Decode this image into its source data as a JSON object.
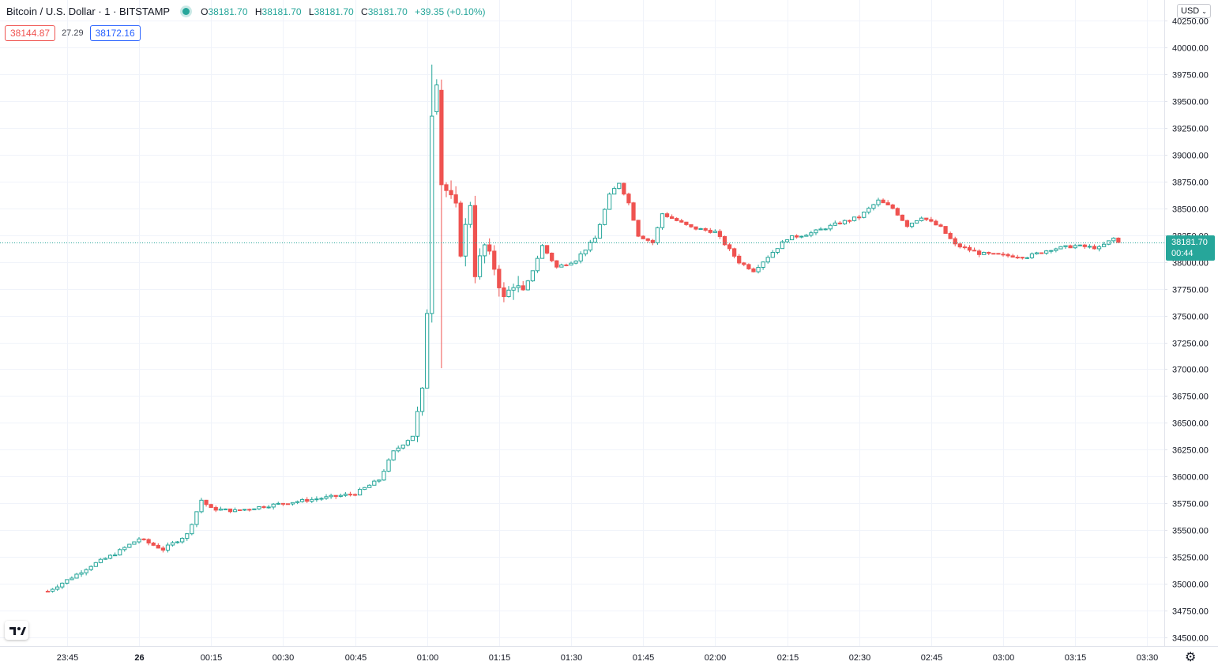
{
  "legend": {
    "symbol": "Bitcoin / U.S. Dollar · 1 · BITSTAMP",
    "open": "38181.70",
    "high": "38181.70",
    "low": "38181.70",
    "close": "38181.70",
    "change": "+39.35 (+0.10%)",
    "labels": {
      "o": "O",
      "h": "H",
      "l": "L",
      "c": "C"
    }
  },
  "spread": {
    "bid": "38144.87",
    "diff": "27.29",
    "ask": "38172.16"
  },
  "currency": "USD",
  "last_price": {
    "price": "38181.70",
    "countdown": "00:44"
  },
  "colors": {
    "up": "#26a69a",
    "down": "#ef5350",
    "grid": "#f0f3fa",
    "axis": "#e0e3eb"
  },
  "icons": {
    "logo": "tradingview-logo-icon",
    "settings": "gear-icon",
    "dropdown": "chevron-down-icon",
    "live": "live-dot-icon"
  },
  "chart_data": {
    "type": "candlestick",
    "timeframe": "1 minute",
    "ylim": [
      34400,
      40300
    ],
    "y_ticks": [
      "34500.00",
      "34750.00",
      "35000.00",
      "35250.00",
      "35500.00",
      "35750.00",
      "36000.00",
      "36250.00",
      "36500.00",
      "36750.00",
      "37000.00",
      "37250.00",
      "37500.00",
      "37750.00",
      "38000.00",
      "38250.00",
      "38500.00",
      "38750.00",
      "39000.00",
      "39250.00",
      "39500.00",
      "39750.00",
      "40000.00",
      "40250.00"
    ],
    "x_ticks": [
      "23:45",
      "26",
      "00:15",
      "00:30",
      "00:45",
      "01:00",
      "01:15",
      "01:30",
      "01:45",
      "02:00",
      "02:15",
      "02:30",
      "02:45",
      "03:00",
      "03:15",
      "03:30"
    ],
    "x_tick_bold": [
      "26"
    ],
    "x_range_minutes": [
      -19,
      220
    ],
    "key_points": [
      {
        "minute": -19,
        "price": 34930
      },
      {
        "minute": -14,
        "price": 35060
      },
      {
        "minute": -10,
        "price": 35170
      },
      {
        "minute": -5,
        "price": 35280
      },
      {
        "minute": 0,
        "price": 35420
      },
      {
        "minute": 5,
        "price": 35320
      },
      {
        "minute": 10,
        "price": 35460
      },
      {
        "minute": 13,
        "price": 35780
      },
      {
        "minute": 15,
        "price": 35700
      },
      {
        "minute": 20,
        "price": 35680
      },
      {
        "minute": 30,
        "price": 35750
      },
      {
        "minute": 40,
        "price": 35810
      },
      {
        "minute": 45,
        "price": 35840
      },
      {
        "minute": 50,
        "price": 35970
      },
      {
        "minute": 53,
        "price": 36230
      },
      {
        "minute": 57,
        "price": 36380
      },
      {
        "minute": 59,
        "price": 36780
      },
      {
        "minute": 60,
        "price": 37550
      },
      {
        "minute": 61,
        "price": 39400
      },
      {
        "minute": 62,
        "price": 39650
      },
      {
        "minute": 63,
        "price": 38750
      },
      {
        "minute": 66,
        "price": 38500
      },
      {
        "minute": 67,
        "price": 38100
      },
      {
        "minute": 69,
        "price": 38550
      },
      {
        "minute": 70,
        "price": 37900
      },
      {
        "minute": 72,
        "price": 38150
      },
      {
        "minute": 74,
        "price": 37950
      },
      {
        "minute": 76,
        "price": 37650
      },
      {
        "minute": 78,
        "price": 37800
      },
      {
        "minute": 80,
        "price": 37700
      },
      {
        "minute": 84,
        "price": 38150
      },
      {
        "minute": 87,
        "price": 37950
      },
      {
        "minute": 91,
        "price": 38020
      },
      {
        "minute": 95,
        "price": 38220
      },
      {
        "minute": 98,
        "price": 38620
      },
      {
        "minute": 100,
        "price": 38740
      },
      {
        "minute": 102,
        "price": 38550
      },
      {
        "minute": 104,
        "price": 38250
      },
      {
        "minute": 107,
        "price": 38180
      },
      {
        "minute": 109,
        "price": 38450
      },
      {
        "minute": 115,
        "price": 38320
      },
      {
        "minute": 120,
        "price": 38280
      },
      {
        "minute": 125,
        "price": 38000
      },
      {
        "minute": 128,
        "price": 37920
      },
      {
        "minute": 131,
        "price": 38050
      },
      {
        "minute": 135,
        "price": 38220
      },
      {
        "minute": 140,
        "price": 38270
      },
      {
        "minute": 145,
        "price": 38350
      },
      {
        "minute": 150,
        "price": 38420
      },
      {
        "minute": 154,
        "price": 38570
      },
      {
        "minute": 157,
        "price": 38500
      },
      {
        "minute": 160,
        "price": 38340
      },
      {
        "minute": 163,
        "price": 38420
      },
      {
        "minute": 167,
        "price": 38320
      },
      {
        "minute": 170,
        "price": 38160
      },
      {
        "minute": 175,
        "price": 38080
      },
      {
        "minute": 180,
        "price": 38060
      },
      {
        "minute": 185,
        "price": 38050
      },
      {
        "minute": 190,
        "price": 38120
      },
      {
        "minute": 195,
        "price": 38150
      },
      {
        "minute": 200,
        "price": 38130
      },
      {
        "minute": 203,
        "price": 38220
      },
      {
        "minute": 204,
        "price": 38181.7
      }
    ]
  }
}
